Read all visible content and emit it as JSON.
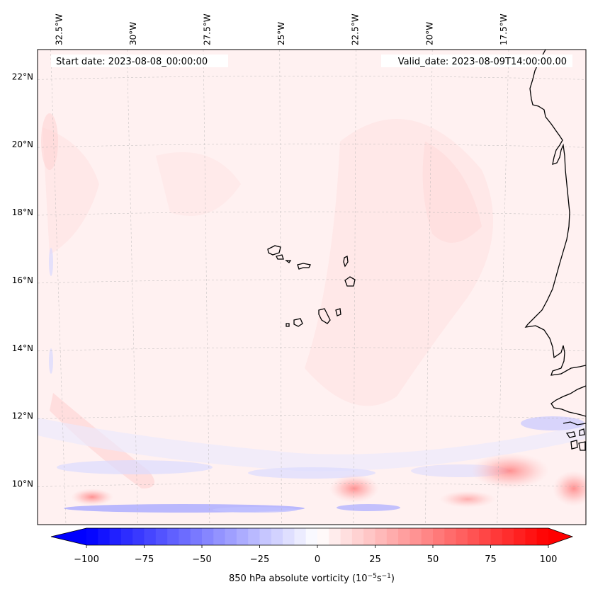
{
  "map": {
    "lon_range": [
      -33.2,
      -14.7
    ],
    "lat_range": [
      8.8,
      22.8
    ],
    "lon_ticks": [
      {
        "value": -32.5,
        "label": "32.5°W"
      },
      {
        "value": -30.0,
        "label": "30°W"
      },
      {
        "value": -27.5,
        "label": "27.5°W"
      },
      {
        "value": -25.0,
        "label": "25°W"
      },
      {
        "value": -22.5,
        "label": "22.5°W"
      },
      {
        "value": -20.0,
        "label": "20°W"
      },
      {
        "value": -17.5,
        "label": "17.5°W"
      }
    ],
    "lat_ticks": [
      {
        "value": 22,
        "label": "22°N"
      },
      {
        "value": 20,
        "label": "20°N"
      },
      {
        "value": 18,
        "label": "18°N"
      },
      {
        "value": 16,
        "label": "16°N"
      },
      {
        "value": 14,
        "label": "14°N"
      },
      {
        "value": 12,
        "label": "12°N"
      },
      {
        "value": 10,
        "label": "10°N"
      }
    ],
    "start_date": "Start date: 2023-08-08_00:00:00",
    "valid_date": "Valid_date: 2023-08-09T14:00:00.00"
  },
  "colorbar": {
    "min": -100,
    "max": 100,
    "ticks": [
      {
        "value": -100,
        "label": "−100"
      },
      {
        "value": -75,
        "label": "−75"
      },
      {
        "value": -50,
        "label": "−50"
      },
      {
        "value": -25,
        "label": "−25"
      },
      {
        "value": 0,
        "label": "0"
      },
      {
        "value": 25,
        "label": "25"
      },
      {
        "value": 50,
        "label": "50"
      },
      {
        "value": 75,
        "label": "75"
      },
      {
        "value": 100,
        "label": "100"
      }
    ],
    "label_main": "850 hPa absolute vorticity (10",
    "label_exp1": "−5",
    "label_mid": "s",
    "label_exp2": "−1",
    "label_end": ")",
    "color_low": "#0000ff",
    "color_mid": "#ffffff",
    "color_high": "#ff0000"
  }
}
